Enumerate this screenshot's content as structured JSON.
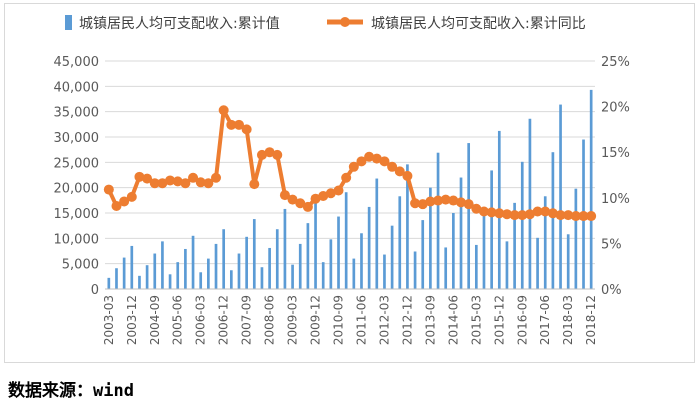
{
  "chart_data": {
    "type": "bar+line",
    "categories": [
      "2003-03",
      "2003-06",
      "2003-09",
      "2003-12",
      "2004-03",
      "2004-06",
      "2004-09",
      "2004-12",
      "2005-03",
      "2005-06",
      "2005-09",
      "2005-12",
      "2006-03",
      "2006-06",
      "2006-09",
      "2006-12",
      "2007-03",
      "2007-06",
      "2007-09",
      "2007-12",
      "2008-03",
      "2008-06",
      "2008-09",
      "2008-12",
      "2009-03",
      "2009-06",
      "2009-09",
      "2009-12",
      "2010-03",
      "2010-06",
      "2010-09",
      "2010-12",
      "2011-03",
      "2011-06",
      "2011-09",
      "2011-12",
      "2012-03",
      "2012-06",
      "2012-09",
      "2012-12",
      "2013-03",
      "2013-06",
      "2013-09",
      "2013-12",
      "2014-03",
      "2014-06",
      "2014-09",
      "2014-12",
      "2015-03",
      "2015-06",
      "2015-09",
      "2015-12",
      "2016-03",
      "2016-06",
      "2016-09",
      "2016-12",
      "2017-03",
      "2017-06",
      "2017-09",
      "2017-12",
      "2018-03",
      "2018-06",
      "2018-09",
      "2018-12"
    ],
    "x_tick_labels": [
      "2003-03",
      "2003-12",
      "2004-09",
      "2005-06",
      "2006-03",
      "2006-12",
      "2007-09",
      "2008-06",
      "2009-03",
      "2009-12",
      "2010-09",
      "2011-06",
      "2012-03",
      "2012-12",
      "2013-09",
      "2014-06",
      "2015-03",
      "2015-12",
      "2016-09",
      "2017-06",
      "2018-03",
      "2018-12"
    ],
    "series": [
      {
        "name": "城镇居民人均可支配收入:累计值",
        "type": "bar",
        "axis": "left",
        "color": "#5b9bd5",
        "values": [
          2200,
          4100,
          6200,
          8500,
          2600,
          4700,
          7000,
          9400,
          2900,
          5300,
          7900,
          10500,
          3300,
          6000,
          8900,
          11800,
          3700,
          7000,
          10300,
          13800,
          4300,
          8100,
          11800,
          15800,
          4800,
          8900,
          13000,
          17200,
          5300,
          9800,
          14300,
          19100,
          6000,
          11000,
          16200,
          21800,
          6800,
          12500,
          18300,
          24600,
          7400,
          13600,
          20000,
          26900,
          8200,
          15000,
          22000,
          28800,
          8700,
          15900,
          23400,
          31200,
          9400,
          17000,
          25100,
          33600,
          10100,
          18300,
          27000,
          36400,
          10800,
          19800,
          29500,
          39300
        ]
      },
      {
        "name": "城镇居民人均可支配收入:累计同比",
        "type": "line",
        "axis": "right",
        "color": "#ed7d31",
        "values": [
          10.9,
          9.1,
          9.6,
          10.1,
          12.3,
          12.1,
          11.6,
          11.6,
          11.9,
          11.8,
          11.6,
          12.2,
          11.7,
          11.6,
          12.2,
          19.6,
          18.0,
          18.0,
          17.5,
          11.5,
          14.7,
          15.0,
          14.7,
          10.3,
          9.8,
          9.4,
          9.0,
          9.9,
          10.2,
          10.5,
          10.8,
          12.2,
          13.4,
          14.0,
          14.5,
          14.3,
          14.0,
          13.4,
          12.9,
          12.4,
          9.4,
          9.3,
          9.6,
          9.7,
          9.8,
          9.7,
          9.5,
          9.3,
          8.8,
          8.5,
          8.4,
          8.3,
          8.2,
          8.1,
          8.1,
          8.2,
          8.5,
          8.5,
          8.3,
          8.1,
          8.1,
          8.0,
          8.0,
          8.0
        ]
      }
    ],
    "y_left": {
      "min": 0,
      "max": 45000,
      "step": 5000,
      "tick_labels": [
        "0",
        "5,000",
        "10,000",
        "15,000",
        "20,000",
        "25,000",
        "30,000",
        "35,000",
        "40,000",
        "45,000"
      ]
    },
    "y_right": {
      "min": 0,
      "max": 25,
      "step": 5,
      "tick_labels": [
        "0%",
        "5%",
        "10%",
        "15%",
        "20%",
        "25%"
      ]
    },
    "grid": true,
    "legend_position": "top"
  },
  "source_label": "数据来源：",
  "source_value": "wind",
  "colors": {
    "axis_text": "#595959",
    "grid": "#d9d9d9"
  }
}
